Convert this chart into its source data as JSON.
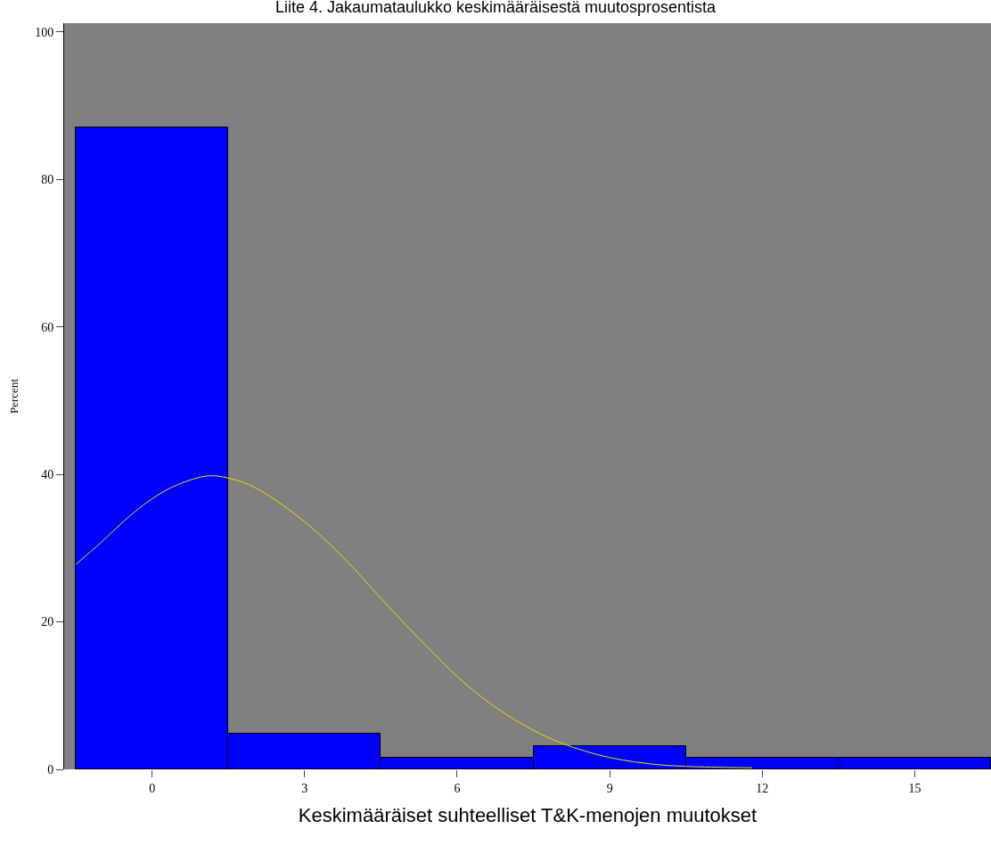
{
  "chart_data": {
    "type": "histogram",
    "title": "Liite 4. Jakaumataulukko keskimääräisestä muutosprosentista",
    "xlabel": "Keskimääräiset suhteelliset T&K-menojen muutokset",
    "ylabel": "Percent",
    "bins": [
      -1.5,
      1.5,
      4.5,
      7.5,
      10.5,
      13.5,
      16.5
    ],
    "values": [
      87.1,
      4.8,
      1.6,
      3.2,
      1.6,
      1.6
    ],
    "color": "#0000ff",
    "series": [
      {
        "type": "line",
        "color": "#e6e600",
        "x": [
          -1.5,
          -1,
          -0.5,
          0,
          0.5,
          1.1,
          1.5,
          2,
          2.85,
          3.5,
          4,
          4.5,
          5,
          5.5,
          6,
          6.5,
          7,
          7.5,
          8,
          8.5,
          9,
          9.5,
          10,
          10.5,
          11,
          11.8
        ],
        "values": [
          27.8,
          30.8,
          34.0,
          36.7,
          38.6,
          39.8,
          39.5,
          38.3,
          34.4,
          30.5,
          27.0,
          23.2,
          19.5,
          16.0,
          12.6,
          9.7,
          7.3,
          5.3,
          3.7,
          2.5,
          1.6,
          1.0,
          0.6,
          0.4,
          0.3,
          0.2
        ]
      }
    ],
    "xlim": [
      -1.73,
      16.5
    ],
    "ylim": [
      0,
      101.2
    ],
    "xticks": [
      0,
      3,
      6,
      9,
      12,
      15
    ],
    "yticks": [
      0,
      20,
      40,
      60,
      80,
      100
    ]
  }
}
